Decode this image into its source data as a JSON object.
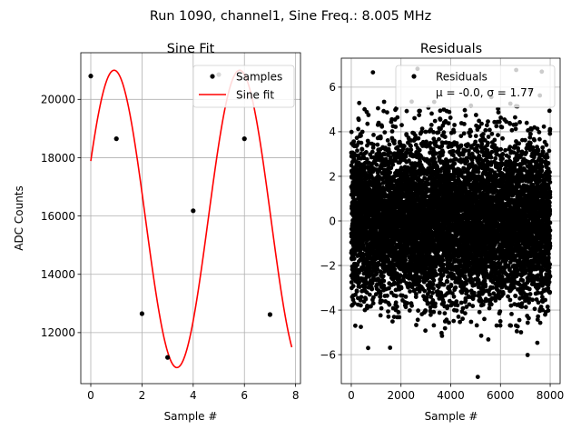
{
  "figure": {
    "suptitle": "Run 1090, channel1, Sine Freq.: 8.005 MHz"
  },
  "chart_data": [
    {
      "type": "scatter+line",
      "title": "Sine Fit",
      "xlabel": "Sample #",
      "ylabel": "ADC Counts",
      "xlim": [
        -0.39,
        8.19
      ],
      "ylim": [
        10250,
        21600
      ],
      "xticks": [
        0,
        2,
        4,
        6,
        8
      ],
      "yticks": [
        12000,
        14000,
        16000,
        18000,
        20000
      ],
      "grid": true,
      "legend": {
        "placement": "top-right",
        "entries": [
          "Samples",
          "Sine fit"
        ]
      },
      "series": [
        {
          "name": "Samples",
          "kind": "scatter",
          "color": "#000000",
          "x": [
            0,
            1,
            2,
            3,
            4,
            5,
            6,
            7
          ],
          "y": [
            20800,
            18650,
            12650,
            11150,
            16180,
            20850,
            18650,
            12620
          ]
        },
        {
          "name": "Sine fit",
          "kind": "line",
          "color": "#ff0000",
          "model": {
            "offset": 15900,
            "amplitude": 5100,
            "period": 4.9,
            "phase": 0.4,
            "x_range": [
              0,
              7.85
            ]
          }
        }
      ]
    },
    {
      "type": "scatter",
      "title": "Residuals",
      "xlabel": "Sample #",
      "ylabel": "",
      "xlim": [
        -400,
        8400
      ],
      "ylim": [
        -7.3,
        7.3
      ],
      "xticks": [
        0,
        2000,
        4000,
        6000,
        8000
      ],
      "yticks": [
        -6,
        -4,
        -2,
        0,
        2,
        4,
        6
      ],
      "grid": true,
      "legend": {
        "placement": "top-right",
        "entries": [
          "Residuals",
          "μ = -0.0, σ = 1.77"
        ]
      },
      "series": [
        {
          "name": "Residuals",
          "kind": "scatter",
          "color": "#000000",
          "n_points": 8000,
          "x_range": [
            0,
            8000
          ],
          "mean": -0.0,
          "std": 1.77
        }
      ]
    }
  ]
}
